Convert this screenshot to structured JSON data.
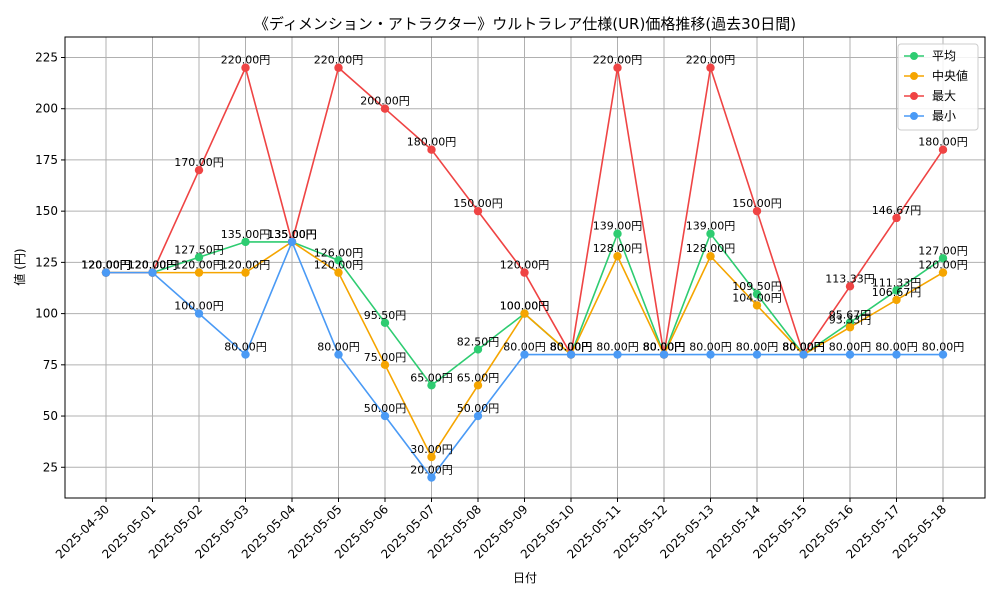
{
  "chart_data": {
    "type": "line",
    "title": "《ディメンション・アトラクター》ウルトラレア仕様(UR)価格推移(過去30日間)",
    "xlabel": "日付",
    "ylabel": "値 (円)",
    "unit_suffix": "円",
    "ylim": [
      10,
      235
    ],
    "yticks": [
      25,
      50,
      75,
      100,
      125,
      150,
      175,
      200,
      225
    ],
    "grid": true,
    "legend_position": "top-right",
    "categories": [
      "2025-04-30",
      "2025-05-01",
      "2025-05-02",
      "2025-05-03",
      "2025-05-04",
      "2025-05-05",
      "2025-05-06",
      "2025-05-07",
      "2025-05-08",
      "2025-05-09",
      "2025-05-10",
      "2025-05-11",
      "2025-05-12",
      "2025-05-13",
      "2025-05-14",
      "2025-05-15",
      "2025-05-16",
      "2025-05-17",
      "2025-05-18"
    ],
    "series": [
      {
        "name": "平均",
        "color": "#2ecc71",
        "values": [
          120,
          120,
          127.5,
          135,
          135,
          126,
          95.5,
          65,
          82.5,
          100,
          80,
          139,
          80,
          139,
          109.5,
          80,
          95.67,
          111.33,
          127
        ]
      },
      {
        "name": "中央値",
        "color": "#f5a500",
        "values": [
          120,
          120,
          120,
          120,
          135,
          120,
          75,
          30,
          65,
          100,
          80,
          128,
          80,
          128,
          104,
          80,
          93.33,
          106.67,
          120
        ]
      },
      {
        "name": "最大",
        "color": "#ef4444",
        "values": [
          120,
          120,
          170,
          220,
          135,
          220,
          200,
          180,
          150,
          120,
          80,
          220,
          80,
          220,
          150,
          80,
          113.33,
          146.67,
          180
        ]
      },
      {
        "name": "最小",
        "color": "#4a9af5",
        "values": [
          120,
          120,
          100,
          80,
          135,
          80,
          50,
          20,
          50,
          80,
          80,
          80,
          80,
          80,
          80,
          80,
          80,
          80,
          80
        ]
      }
    ]
  }
}
